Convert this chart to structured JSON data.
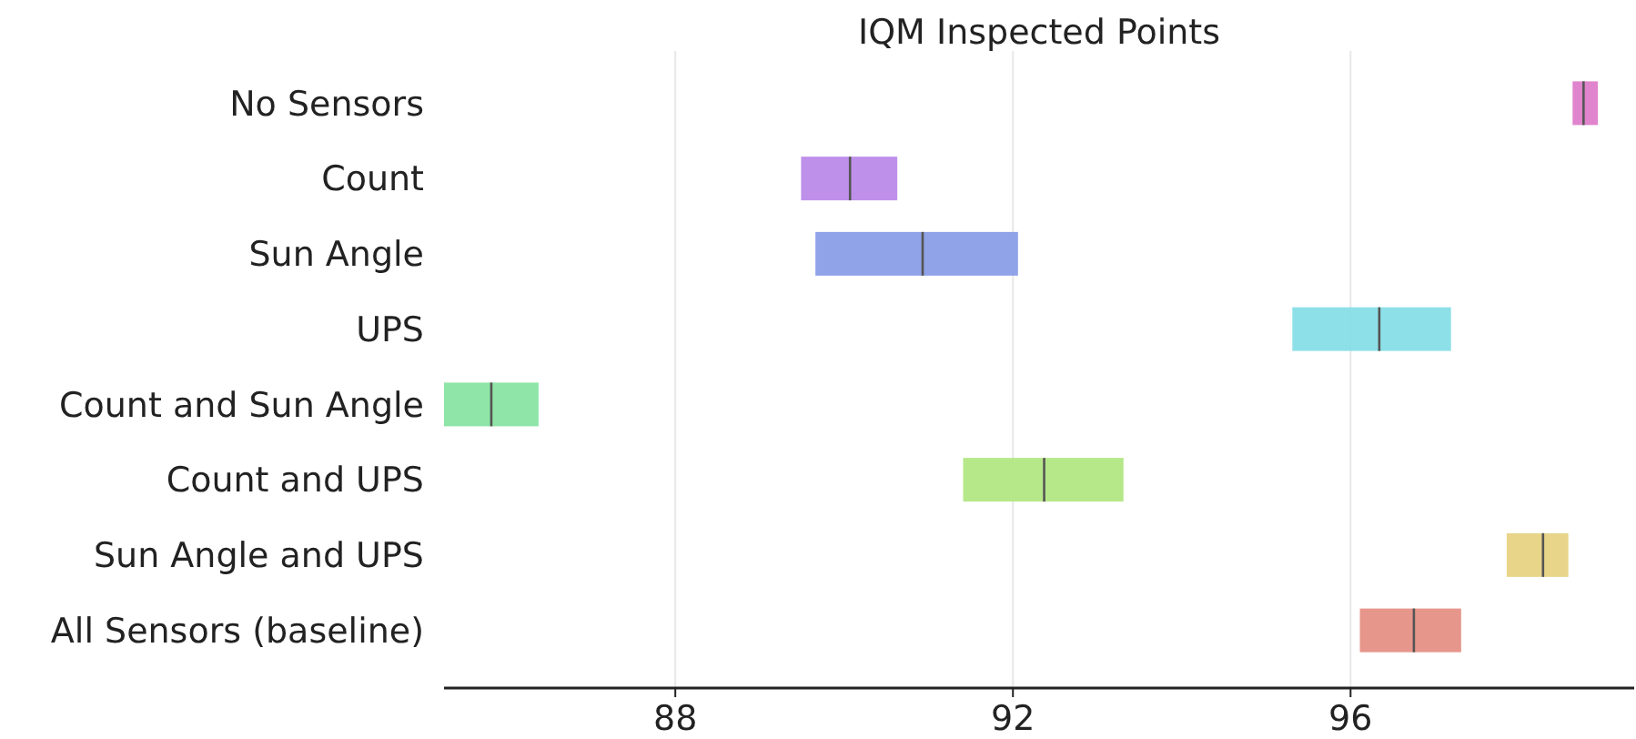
{
  "chart_data": {
    "type": "box",
    "orientation": "horizontal",
    "title": "IQM Inspected Points",
    "categories": [
      "No Sensors",
      "Count",
      "Sun Angle",
      "UPS",
      "Count and Sun Angle",
      "Count and UPS",
      "Sun Angle and UPS",
      "All Sensors (baseline)"
    ],
    "boxes": [
      {
        "low": 98.63,
        "q1": 98.63,
        "median": 98.76,
        "q3": 98.93,
        "high": 98.93
      },
      {
        "low": 89.49,
        "q1": 89.49,
        "median": 90.07,
        "q3": 90.63,
        "high": 90.63
      },
      {
        "low": 89.66,
        "q1": 89.66,
        "median": 90.93,
        "q3": 92.06,
        "high": 92.06
      },
      {
        "low": 95.31,
        "q1": 95.31,
        "median": 96.34,
        "q3": 97.19,
        "high": 97.19
      },
      {
        "low": 85.26,
        "q1": 85.26,
        "median": 85.82,
        "q3": 86.38,
        "high": 86.38
      },
      {
        "low": 91.41,
        "q1": 91.41,
        "median": 92.37,
        "q3": 93.31,
        "high": 93.31
      },
      {
        "low": 97.85,
        "q1": 97.85,
        "median": 98.28,
        "q3": 98.58,
        "high": 98.58
      },
      {
        "low": 96.11,
        "q1": 96.11,
        "median": 96.75,
        "q3": 97.31,
        "high": 97.31
      }
    ],
    "colors": [
      "#dd77c8",
      "#b784e8",
      "#8499e6",
      "#82dde6",
      "#82e29d",
      "#aee57d",
      "#e5d07d",
      "#e48b80"
    ],
    "xlim": [
      85.26,
      99.36
    ],
    "xticks": [
      88,
      92,
      96
    ],
    "grid": "x"
  }
}
